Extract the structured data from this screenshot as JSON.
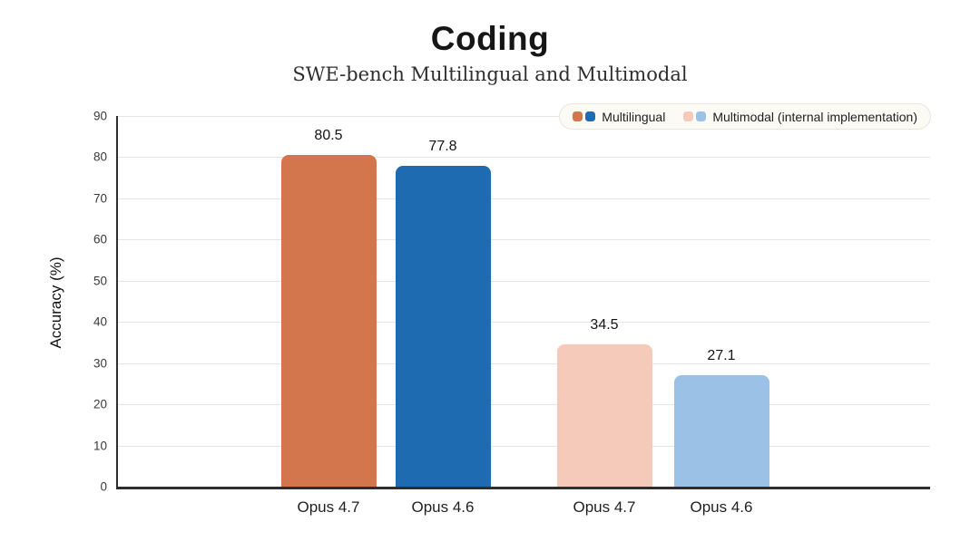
{
  "chart_data": {
    "type": "bar",
    "title": "Coding",
    "subtitle": "SWE-bench Multilingual and Multimodal",
    "ylabel": "Accuracy (%)",
    "ylim": [
      0,
      90
    ],
    "yticks": [
      0,
      10,
      20,
      30,
      40,
      50,
      60,
      70,
      80,
      90
    ],
    "grid": true,
    "legend_position": "top-right",
    "legend": [
      {
        "label": "Multilingual",
        "colors": [
          "#d3764e",
          "#1e6bb1"
        ]
      },
      {
        "label": "Multimodal (internal implementation)",
        "colors": [
          "#f5cabb",
          "#9cc1e6"
        ]
      }
    ],
    "bars": [
      {
        "category": "Opus 4.7",
        "group": "Multilingual",
        "value": 80.5,
        "color": "#d3764e"
      },
      {
        "category": "Opus 4.6",
        "group": "Multilingual",
        "value": 77.8,
        "color": "#1e6bb1"
      },
      {
        "category": "Opus 4.7",
        "group": "Multimodal (internal implementation)",
        "value": 34.5,
        "color": "#f5cabb"
      },
      {
        "category": "Opus 4.6",
        "group": "Multimodal (internal implementation)",
        "value": 27.1,
        "color": "#9cc1e6"
      }
    ]
  },
  "colors": {
    "background": "#ffffff",
    "axis": "#2e2e2e",
    "grid": "#e4e4e4",
    "text": "#161616",
    "legend_bg": "#fbfaf5",
    "legend_border": "#e9e6de"
  }
}
